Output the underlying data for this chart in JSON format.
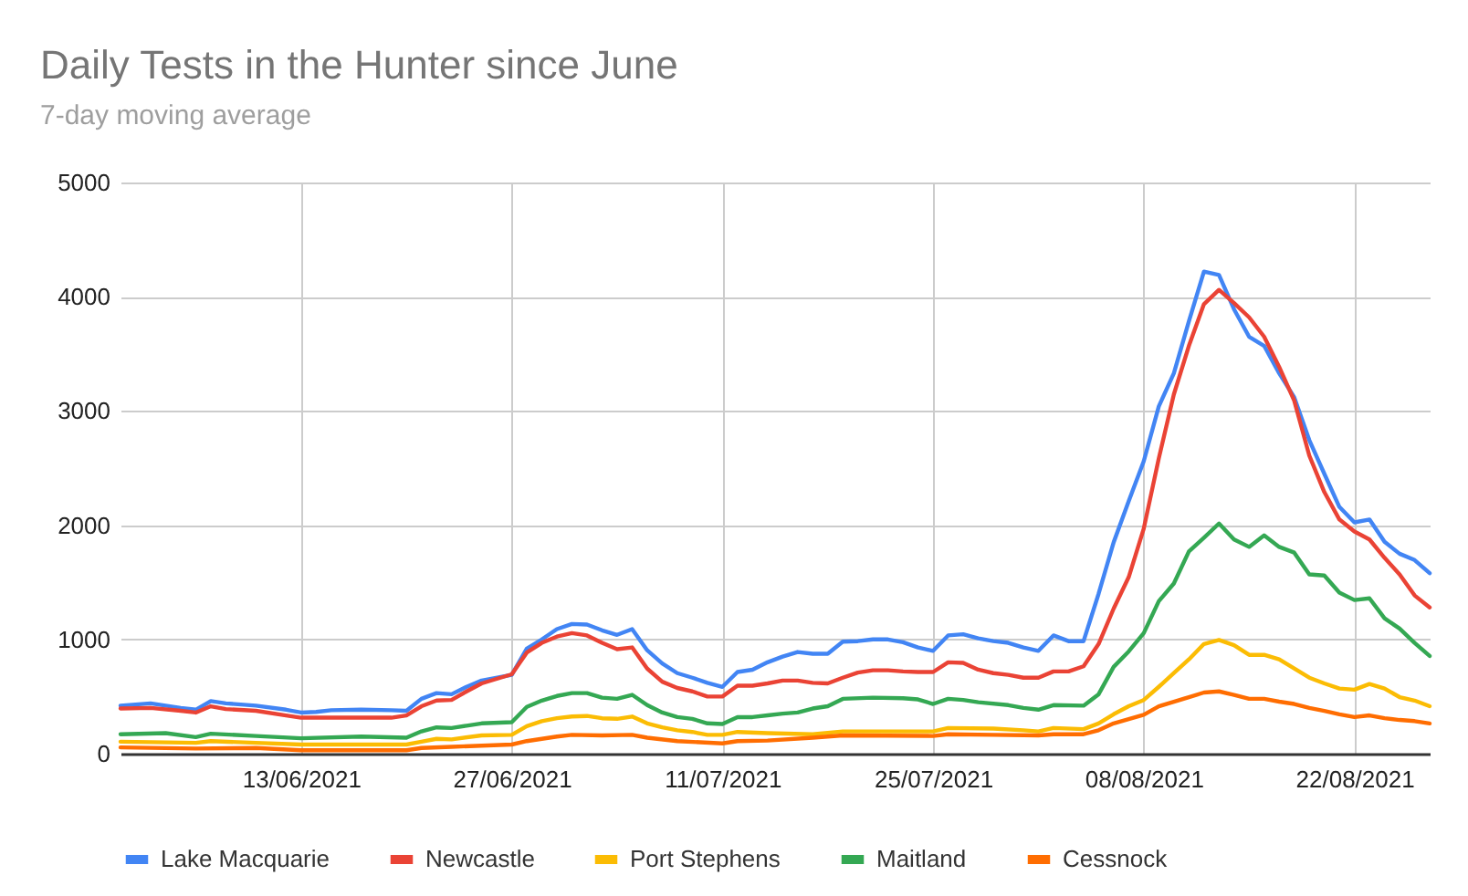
{
  "chart_data": {
    "type": "line",
    "title": "Daily Tests in the Hunter since June",
    "subtitle": "7-day moving average",
    "xlim": [
      "2021-06-01",
      "2021-08-27"
    ],
    "xticks": [
      {
        "value": "2021-06-13",
        "label": "13/06/2021"
      },
      {
        "value": "2021-06-27",
        "label": "27/06/2021"
      },
      {
        "value": "2021-07-11",
        "label": "11/07/2021"
      },
      {
        "value": "2021-07-25",
        "label": "25/07/2021"
      },
      {
        "value": "2021-08-08",
        "label": "08/08/2021"
      },
      {
        "value": "2021-08-22",
        "label": "22/08/2021"
      }
    ],
    "ylim": [
      0,
      5000
    ],
    "yticks": [
      0,
      1000,
      2000,
      3000,
      4000,
      5000
    ],
    "grid": true,
    "legend": "bottom",
    "series": [
      {
        "name": "Lake Macquarie",
        "color": "#4285f4",
        "x": [
          "2021-06-01",
          "2021-06-03",
          "2021-06-05",
          "2021-06-06",
          "2021-06-07",
          "2021-06-08",
          "2021-06-10",
          "2021-06-12",
          "2021-06-13",
          "2021-06-14",
          "2021-06-15",
          "2021-06-17",
          "2021-06-19",
          "2021-06-20",
          "2021-06-21",
          "2021-06-22",
          "2021-06-23",
          "2021-06-24",
          "2021-06-25",
          "2021-06-27",
          "2021-06-28",
          "2021-06-29",
          "2021-06-30",
          "2021-07-01",
          "2021-07-02",
          "2021-07-03",
          "2021-07-04",
          "2021-07-05",
          "2021-07-06",
          "2021-07-07",
          "2021-07-08",
          "2021-07-09",
          "2021-07-10",
          "2021-07-11",
          "2021-07-12",
          "2021-07-13",
          "2021-07-14",
          "2021-07-15",
          "2021-07-16",
          "2021-07-17",
          "2021-07-18",
          "2021-07-19",
          "2021-07-20",
          "2021-07-21",
          "2021-07-22",
          "2021-07-23",
          "2021-07-24",
          "2021-07-25",
          "2021-07-26",
          "2021-07-27",
          "2021-07-28",
          "2021-07-29",
          "2021-07-30",
          "2021-07-31",
          "2021-08-01",
          "2021-08-02",
          "2021-08-03",
          "2021-08-04",
          "2021-08-05",
          "2021-08-06",
          "2021-08-07",
          "2021-08-08",
          "2021-08-09",
          "2021-08-10",
          "2021-08-11",
          "2021-08-12",
          "2021-08-13",
          "2021-08-14",
          "2021-08-15",
          "2021-08-16",
          "2021-08-17",
          "2021-08-18",
          "2021-08-19",
          "2021-08-20",
          "2021-08-21",
          "2021-08-22",
          "2021-08-23",
          "2021-08-24",
          "2021-08-25",
          "2021-08-26",
          "2021-08-27"
        ],
        "values": [
          420,
          440,
          400,
          385,
          460,
          440,
          420,
          385,
          360,
          365,
          380,
          385,
          380,
          375,
          480,
          530,
          520,
          585,
          640,
          690,
          920,
          1000,
          1090,
          1135,
          1130,
          1080,
          1040,
          1090,
          905,
          790,
          705,
          665,
          620,
          585,
          715,
          735,
          800,
          850,
          890,
          875,
          875,
          980,
          985,
          1000,
          1000,
          975,
          930,
          900,
          1035,
          1045,
          1010,
          985,
          970,
          930,
          900,
          1035,
          985,
          985,
          1400,
          1850,
          2210,
          2560,
          3040,
          3330,
          3785,
          4220,
          4190,
          3890,
          3650,
          3570,
          3330,
          3120,
          2745,
          2450,
          2160,
          2025,
          2050,
          1855,
          1750,
          1695,
          1580
        ]
      },
      {
        "name": "Newcastle",
        "color": "#ea4335",
        "x": [
          "2021-06-01",
          "2021-06-03",
          "2021-06-05",
          "2021-06-06",
          "2021-06-07",
          "2021-06-08",
          "2021-06-10",
          "2021-06-12",
          "2021-06-13",
          "2021-06-15",
          "2021-06-17",
          "2021-06-19",
          "2021-06-20",
          "2021-06-21",
          "2021-06-22",
          "2021-06-23",
          "2021-06-24",
          "2021-06-25",
          "2021-06-26",
          "2021-06-27",
          "2021-06-28",
          "2021-06-29",
          "2021-06-30",
          "2021-07-01",
          "2021-07-02",
          "2021-07-03",
          "2021-07-04",
          "2021-07-05",
          "2021-07-06",
          "2021-07-07",
          "2021-07-08",
          "2021-07-09",
          "2021-07-10",
          "2021-07-11",
          "2021-07-12",
          "2021-07-13",
          "2021-07-14",
          "2021-07-15",
          "2021-07-16",
          "2021-07-17",
          "2021-07-18",
          "2021-07-19",
          "2021-07-20",
          "2021-07-21",
          "2021-07-22",
          "2021-07-23",
          "2021-07-24",
          "2021-07-25",
          "2021-07-26",
          "2021-07-27",
          "2021-07-28",
          "2021-07-29",
          "2021-07-30",
          "2021-07-31",
          "2021-08-01",
          "2021-08-02",
          "2021-08-03",
          "2021-08-04",
          "2021-08-05",
          "2021-08-06",
          "2021-08-07",
          "2021-08-08",
          "2021-08-09",
          "2021-08-10",
          "2021-08-11",
          "2021-08-12",
          "2021-08-13",
          "2021-08-14",
          "2021-08-15",
          "2021-08-16",
          "2021-08-17",
          "2021-08-18",
          "2021-08-19",
          "2021-08-20",
          "2021-08-21",
          "2021-08-22",
          "2021-08-23",
          "2021-08-24",
          "2021-08-25",
          "2021-08-26",
          "2021-08-27"
        ],
        "values": [
          395,
          400,
          375,
          360,
          415,
          390,
          375,
          335,
          315,
          315,
          315,
          315,
          335,
          415,
          465,
          470,
          545,
          615,
          655,
          695,
          885,
          970,
          1025,
          1055,
          1035,
          970,
          915,
          930,
          745,
          630,
          575,
          545,
          500,
          500,
          595,
          595,
          615,
          640,
          640,
          620,
          615,
          665,
          710,
          730,
          730,
          720,
          715,
          715,
          800,
          795,
          735,
          705,
          690,
          665,
          665,
          720,
          720,
          765,
          960,
          1270,
          1545,
          1970,
          2585,
          3145,
          3570,
          3935,
          4060,
          3945,
          3820,
          3650,
          3385,
          3090,
          2610,
          2290,
          2050,
          1945,
          1875,
          1715,
          1570,
          1385,
          1280
        ]
      },
      {
        "name": "Port Stephens",
        "color": "#fbbc04",
        "x": [
          "2021-06-01",
          "2021-06-06",
          "2021-06-07",
          "2021-06-10",
          "2021-06-13",
          "2021-06-20",
          "2021-06-21",
          "2021-06-22",
          "2021-06-23",
          "2021-06-25",
          "2021-06-27",
          "2021-06-28",
          "2021-06-29",
          "2021-06-30",
          "2021-07-01",
          "2021-07-02",
          "2021-07-03",
          "2021-07-04",
          "2021-07-05",
          "2021-07-06",
          "2021-07-07",
          "2021-07-08",
          "2021-07-09",
          "2021-07-10",
          "2021-07-11",
          "2021-07-12",
          "2021-07-14",
          "2021-07-17",
          "2021-07-19",
          "2021-07-23",
          "2021-07-25",
          "2021-07-26",
          "2021-07-29",
          "2021-07-31",
          "2021-08-01",
          "2021-08-02",
          "2021-08-04",
          "2021-08-05",
          "2021-08-06",
          "2021-08-07",
          "2021-08-08",
          "2021-08-09",
          "2021-08-10",
          "2021-08-11",
          "2021-08-12",
          "2021-08-13",
          "2021-08-14",
          "2021-08-15",
          "2021-08-16",
          "2021-08-17",
          "2021-08-18",
          "2021-08-19",
          "2021-08-20",
          "2021-08-21",
          "2021-08-22",
          "2021-08-23",
          "2021-08-24",
          "2021-08-25",
          "2021-08-26",
          "2021-08-27"
        ],
        "values": [
          105,
          95,
          110,
          95,
          80,
          80,
          105,
          130,
          125,
          160,
          165,
          240,
          285,
          310,
          325,
          330,
          310,
          305,
          325,
          265,
          230,
          205,
          190,
          165,
          165,
          190,
          180,
          170,
          195,
          195,
          195,
          225,
          220,
          205,
          195,
          225,
          215,
          265,
          345,
          415,
          470,
          585,
          705,
          825,
          960,
          995,
          950,
          865,
          865,
          825,
          745,
          665,
          615,
          570,
          560,
          610,
          570,
          495,
          465,
          415
        ]
      },
      {
        "name": "Maitland",
        "color": "#34a853",
        "x": [
          "2021-06-01",
          "2021-06-04",
          "2021-06-06",
          "2021-06-07",
          "2021-06-10",
          "2021-06-13",
          "2021-06-17",
          "2021-06-20",
          "2021-06-21",
          "2021-06-22",
          "2021-06-23",
          "2021-06-24",
          "2021-06-25",
          "2021-06-27",
          "2021-06-28",
          "2021-06-29",
          "2021-06-30",
          "2021-07-01",
          "2021-07-02",
          "2021-07-03",
          "2021-07-04",
          "2021-07-05",
          "2021-07-06",
          "2021-07-07",
          "2021-07-08",
          "2021-07-09",
          "2021-07-10",
          "2021-07-11",
          "2021-07-12",
          "2021-07-13",
          "2021-07-14",
          "2021-07-15",
          "2021-07-16",
          "2021-07-17",
          "2021-07-18",
          "2021-07-19",
          "2021-07-21",
          "2021-07-23",
          "2021-07-24",
          "2021-07-25",
          "2021-07-26",
          "2021-07-27",
          "2021-07-28",
          "2021-07-30",
          "2021-07-31",
          "2021-08-01",
          "2021-08-02",
          "2021-08-04",
          "2021-08-05",
          "2021-08-06",
          "2021-08-07",
          "2021-08-08",
          "2021-08-09",
          "2021-08-10",
          "2021-08-11",
          "2021-08-12",
          "2021-08-13",
          "2021-08-14",
          "2021-08-15",
          "2021-08-16",
          "2021-08-17",
          "2021-08-18",
          "2021-08-19",
          "2021-08-20",
          "2021-08-21",
          "2021-08-22",
          "2021-08-23",
          "2021-08-24",
          "2021-08-25",
          "2021-08-26",
          "2021-08-27"
        ],
        "values": [
          170,
          180,
          145,
          175,
          155,
          135,
          150,
          140,
          195,
          230,
          225,
          245,
          265,
          275,
          410,
          465,
          505,
          530,
          530,
          490,
          480,
          515,
          425,
          360,
          320,
          305,
          265,
          260,
          320,
          320,
          335,
          350,
          360,
          395,
          415,
          480,
          490,
          485,
          475,
          435,
          480,
          470,
          450,
          425,
          400,
          385,
          425,
          420,
          520,
          760,
          895,
          1055,
          1335,
          1490,
          1770,
          1890,
          2015,
          1875,
          1810,
          1910,
          1810,
          1760,
          1570,
          1560,
          1410,
          1345,
          1360,
          1185,
          1095,
          970,
          855
        ]
      },
      {
        "name": "Cessnock",
        "color": "#ff6d01",
        "x": [
          "2021-06-01",
          "2021-06-06",
          "2021-06-10",
          "2021-06-13",
          "2021-06-20",
          "2021-06-21",
          "2021-06-23",
          "2021-06-25",
          "2021-06-27",
          "2021-06-28",
          "2021-06-29",
          "2021-06-30",
          "2021-07-01",
          "2021-07-03",
          "2021-07-05",
          "2021-07-06",
          "2021-07-08",
          "2021-07-11",
          "2021-07-12",
          "2021-07-14",
          "2021-07-17",
          "2021-07-19",
          "2021-07-25",
          "2021-07-26",
          "2021-07-29",
          "2021-08-01",
          "2021-08-02",
          "2021-08-04",
          "2021-08-05",
          "2021-08-06",
          "2021-08-08",
          "2021-08-09",
          "2021-08-10",
          "2021-08-11",
          "2021-08-12",
          "2021-08-13",
          "2021-08-14",
          "2021-08-15",
          "2021-08-16",
          "2021-08-17",
          "2021-08-18",
          "2021-08-19",
          "2021-08-20",
          "2021-08-21",
          "2021-08-22",
          "2021-08-23",
          "2021-08-24",
          "2021-08-25",
          "2021-08-26",
          "2021-08-27"
        ],
        "values": [
          55,
          45,
          50,
          30,
          30,
          50,
          60,
          70,
          80,
          110,
          130,
          150,
          165,
          160,
          165,
          140,
          110,
          90,
          110,
          115,
          140,
          160,
          155,
          170,
          165,
          160,
          170,
          170,
          205,
          265,
          340,
          415,
          455,
          495,
          535,
          545,
          515,
          480,
          480,
          455,
          435,
          400,
          375,
          345,
          320,
          335,
          310,
          295,
          285,
          265
        ]
      }
    ]
  }
}
